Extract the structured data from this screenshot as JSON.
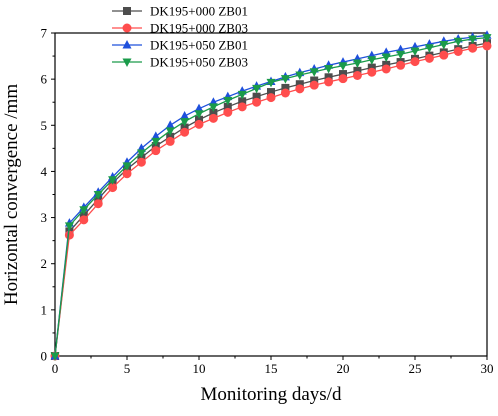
{
  "chart_data": {
    "type": "line",
    "title": "",
    "xlabel": "Monitoring days/d",
    "ylabel": "Horizontal convergence /mm",
    "xlim": [
      0,
      30
    ],
    "ylim": [
      0,
      7
    ],
    "xticks": [
      0,
      5,
      10,
      15,
      20,
      25,
      30
    ],
    "yticks": [
      0,
      1,
      2,
      3,
      4,
      5,
      6,
      7
    ],
    "grid": false,
    "legend_position": "top-left",
    "x": [
      0,
      1,
      2,
      3,
      4,
      5,
      6,
      7,
      8,
      9,
      10,
      11,
      12,
      13,
      14,
      15,
      16,
      17,
      18,
      19,
      20,
      21,
      22,
      23,
      24,
      25,
      26,
      27,
      28,
      29,
      30
    ],
    "series": [
      {
        "name": "DK195+000 ZB01",
        "color": "#4d4d4d",
        "marker": "square",
        "values": [
          0,
          2.7,
          3.05,
          3.4,
          3.75,
          4.05,
          4.3,
          4.55,
          4.75,
          4.95,
          5.12,
          5.27,
          5.4,
          5.52,
          5.62,
          5.72,
          5.81,
          5.89,
          5.97,
          6.04,
          6.11,
          6.18,
          6.25,
          6.31,
          6.37,
          6.44,
          6.51,
          6.58,
          6.65,
          6.72,
          6.78
        ]
      },
      {
        "name": "DK195+000 ZB03",
        "color": "#ff4d4d",
        "marker": "circle",
        "values": [
          0,
          2.62,
          2.95,
          3.3,
          3.65,
          3.95,
          4.2,
          4.45,
          4.65,
          4.85,
          5.02,
          5.15,
          5.28,
          5.4,
          5.5,
          5.6,
          5.7,
          5.79,
          5.87,
          5.94,
          6.01,
          6.08,
          6.15,
          6.22,
          6.3,
          6.38,
          6.45,
          6.52,
          6.6,
          6.67,
          6.72
        ]
      },
      {
        "name": "DK195+050 ZB01",
        "color": "#1e50dc",
        "marker": "triangle-up",
        "values": [
          0,
          2.88,
          3.22,
          3.55,
          3.88,
          4.2,
          4.5,
          4.76,
          5.0,
          5.2,
          5.36,
          5.5,
          5.62,
          5.74,
          5.85,
          5.95,
          6.05,
          6.14,
          6.22,
          6.3,
          6.37,
          6.44,
          6.51,
          6.58,
          6.64,
          6.7,
          6.76,
          6.82,
          6.87,
          6.91,
          6.95
        ]
      },
      {
        "name": "DK195+050 ZB03",
        "color": "#1a9b4a",
        "marker": "triangle-down",
        "values": [
          0,
          2.82,
          3.17,
          3.5,
          3.82,
          4.12,
          4.4,
          4.65,
          4.88,
          5.08,
          5.25,
          5.4,
          5.54,
          5.67,
          5.8,
          5.93,
          6.01,
          6.09,
          6.16,
          6.23,
          6.29,
          6.35,
          6.42,
          6.48,
          6.54,
          6.61,
          6.68,
          6.75,
          6.82,
          6.87,
          6.9
        ]
      }
    ]
  }
}
